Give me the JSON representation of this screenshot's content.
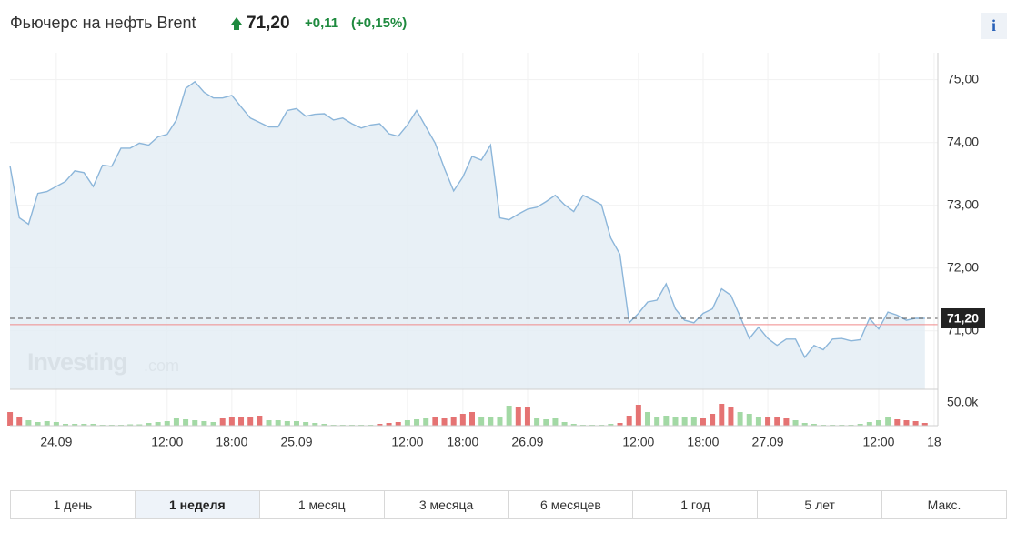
{
  "header": {
    "title": "Фьючерс на нефть Brent",
    "price": "71,20",
    "change": "+0,11",
    "change_pct": "(+0,15%)",
    "change_color": "#1e8a3e",
    "info": "i"
  },
  "watermark": [
    "Investing",
    ".com"
  ],
  "range_buttons": {
    "items": [
      "1 день",
      "1 неделя",
      "1 месяц",
      "3 месяца",
      "6 месяцев",
      "1 год",
      "5 лет",
      "Макс."
    ],
    "active": 1
  },
  "chart_data": [
    {
      "type": "line",
      "categories": [
        null,
        null,
        null,
        null,
        null,
        "24.09",
        null,
        null,
        null,
        null,
        null,
        null,
        null,
        null,
        null,
        null,
        null,
        "12:00",
        null,
        null,
        null,
        null,
        null,
        null,
        "18:00",
        null,
        null,
        null,
        null,
        null,
        null,
        "25.09",
        null,
        null,
        null,
        null,
        null,
        null,
        null,
        null,
        null,
        null,
        null,
        "12:00",
        null,
        null,
        null,
        null,
        null,
        "18:00",
        null,
        null,
        null,
        null,
        null,
        null,
        "26.09",
        null,
        null,
        null,
        null,
        null,
        null,
        null,
        null,
        null,
        null,
        null,
        "12:00",
        null,
        null,
        null,
        null,
        null,
        null,
        "18:00",
        null,
        null,
        null,
        null,
        null,
        null,
        "27.09",
        null,
        null,
        null,
        null,
        null,
        null,
        null,
        null,
        null,
        null,
        null,
        "12:00",
        null,
        null,
        null,
        null,
        null,
        "18"
      ],
      "values": [
        73.62,
        72.8,
        72.7,
        73.19,
        73.22,
        73.3,
        73.38,
        73.55,
        73.52,
        73.3,
        73.64,
        73.62,
        73.91,
        73.91,
        73.99,
        73.96,
        74.09,
        74.13,
        74.36,
        74.86,
        74.97,
        74.8,
        74.71,
        74.71,
        74.75,
        74.57,
        74.39,
        74.32,
        74.25,
        74.25,
        74.51,
        74.54,
        74.42,
        74.45,
        74.46,
        74.36,
        74.39,
        74.3,
        74.23,
        74.28,
        74.3,
        74.14,
        74.1,
        74.28,
        74.51,
        74.25,
        73.99,
        73.59,
        73.23,
        73.45,
        73.78,
        73.72,
        73.96,
        72.8,
        72.77,
        72.86,
        72.94,
        72.97,
        73.06,
        73.16,
        73.01,
        72.9,
        73.16,
        73.09,
        73.01,
        72.48,
        72.22,
        71.13,
        71.28,
        71.46,
        71.49,
        71.75,
        71.35,
        71.17,
        71.13,
        71.28,
        71.35,
        71.67,
        71.57,
        71.23,
        70.88,
        71.06,
        70.88,
        70.77,
        70.87,
        70.87,
        70.58,
        70.77,
        70.7,
        70.87,
        70.88,
        70.84,
        70.86,
        71.2,
        71.03,
        71.3,
        71.25,
        71.17,
        71.2,
        71.2,
        null
      ],
      "color": "#8cb6da",
      "fill_color": "#e4edf5",
      "ylim": [
        70.07,
        75.43
      ],
      "yticks": [
        {
          "value": 71,
          "label": "71,00"
        },
        {
          "value": 72,
          "label": "72,00"
        },
        {
          "value": 73,
          "label": "73,00"
        },
        {
          "value": 74,
          "label": "74,00"
        },
        {
          "value": 75,
          "label": "75,00"
        }
      ],
      "grid": true,
      "last_price": {
        "value": 71.2,
        "label": "71,20"
      },
      "prev_close": {
        "value": 71.1,
        "color": "#f08a8a"
      }
    },
    {
      "type": "bar",
      "values": [
        30000,
        20000,
        12000,
        8000,
        10000,
        8000,
        4000,
        4000,
        4000,
        4000,
        2000,
        2000,
        2000,
        3000,
        3000,
        6000,
        8000,
        10000,
        16000,
        14000,
        12000,
        10000,
        8000,
        16000,
        20000,
        18000,
        20000,
        22000,
        12000,
        12000,
        10000,
        10000,
        8000,
        6000,
        4000,
        2000,
        2000,
        2000,
        2000,
        2000,
        4000,
        6000,
        8000,
        12000,
        14000,
        16000,
        20000,
        16000,
        20000,
        26000,
        30000,
        20000,
        18000,
        20000,
        44000,
        40000,
        42000,
        16000,
        14000,
        16000,
        8000,
        4000,
        2000,
        2000,
        2000,
        4000,
        6000,
        22000,
        46000,
        30000,
        20000,
        22000,
        20000,
        20000,
        18000,
        16000,
        26000,
        48000,
        40000,
        30000,
        26000,
        20000,
        18000,
        20000,
        16000,
        12000,
        6000,
        4000,
        2000,
        2000,
        2000,
        2000,
        4000,
        8000,
        12000,
        18000,
        14000,
        12000,
        10000,
        6000
      ],
      "colors": [
        "#e57373",
        "#e57373",
        "#a3d9a5",
        "#a3d9a5",
        "#a3d9a5",
        "#a3d9a5",
        "#a3d9a5",
        "#a3d9a5",
        "#a3d9a5",
        "#a3d9a5",
        "#a3d9a5",
        "#a3d9a5",
        "#a3d9a5",
        "#a3d9a5",
        "#a3d9a5",
        "#a3d9a5",
        "#a3d9a5",
        "#a3d9a5",
        "#a3d9a5",
        "#a3d9a5",
        "#a3d9a5",
        "#a3d9a5",
        "#a3d9a5",
        "#e57373",
        "#e57373",
        "#e57373",
        "#e57373",
        "#e57373",
        "#a3d9a5",
        "#a3d9a5",
        "#a3d9a5",
        "#a3d9a5",
        "#a3d9a5",
        "#a3d9a5",
        "#a3d9a5",
        "#a3d9a5",
        "#a3d9a5",
        "#a3d9a5",
        "#a3d9a5",
        "#a3d9a5",
        "#e57373",
        "#e57373",
        "#e57373",
        "#a3d9a5",
        "#a3d9a5",
        "#a3d9a5",
        "#e57373",
        "#e57373",
        "#e57373",
        "#e57373",
        "#e57373",
        "#a3d9a5",
        "#a3d9a5",
        "#a3d9a5",
        "#a3d9a5",
        "#e57373",
        "#e57373",
        "#a3d9a5",
        "#a3d9a5",
        "#a3d9a5",
        "#a3d9a5",
        "#a3d9a5",
        "#a3d9a5",
        "#a3d9a5",
        "#a3d9a5",
        "#a3d9a5",
        "#e57373",
        "#e57373",
        "#e57373",
        "#a3d9a5",
        "#a3d9a5",
        "#a3d9a5",
        "#a3d9a5",
        "#a3d9a5",
        "#a3d9a5",
        "#e57373",
        "#e57373",
        "#e57373",
        "#e57373",
        "#a3d9a5",
        "#a3d9a5",
        "#a3d9a5",
        "#e57373",
        "#e57373",
        "#e57373",
        "#a3d9a5",
        "#a3d9a5",
        "#a3d9a5",
        "#a3d9a5",
        "#a3d9a5",
        "#a3d9a5",
        "#a3d9a5",
        "#a3d9a5",
        "#a3d9a5",
        "#a3d9a5",
        "#a3d9a5",
        "#e57373",
        "#e57373",
        "#e57373",
        "#e57373"
      ],
      "ylim": [
        0,
        76000
      ],
      "yticks": [
        {
          "value": 50000,
          "label": "50.0k"
        }
      ]
    }
  ]
}
